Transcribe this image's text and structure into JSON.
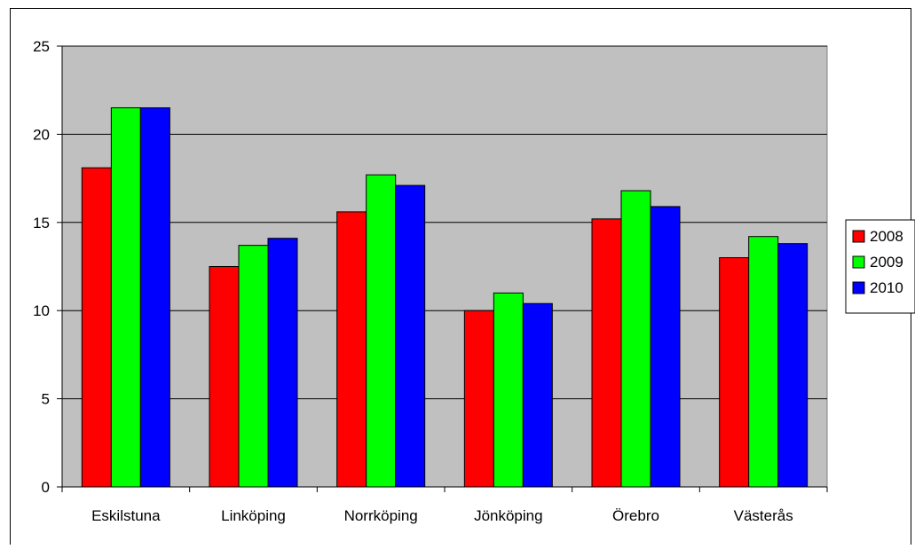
{
  "chart_data": {
    "type": "bar",
    "title": "",
    "xlabel": "",
    "ylabel": "",
    "categories": [
      "Eskilstuna",
      "Linköping",
      "Norrköping",
      "Jönköping",
      "Örebro",
      "Västerås"
    ],
    "series": [
      {
        "name": "2008",
        "color": "#ff0000",
        "values": [
          18.1,
          12.5,
          15.6,
          10.0,
          15.2,
          13.0
        ]
      },
      {
        "name": "2009",
        "color": "#00ff00",
        "values": [
          21.5,
          13.7,
          17.7,
          11.0,
          16.8,
          14.2
        ]
      },
      {
        "name": "2010",
        "color": "#0000ff",
        "values": [
          21.5,
          14.1,
          17.1,
          10.4,
          15.9,
          13.8
        ]
      }
    ],
    "ylim": [
      0,
      25
    ],
    "yticks": [
      "0",
      "5",
      "10",
      "15",
      "20",
      "25"
    ],
    "plot_background": "#c0c0c0",
    "grid": true,
    "legend_position": "right"
  }
}
